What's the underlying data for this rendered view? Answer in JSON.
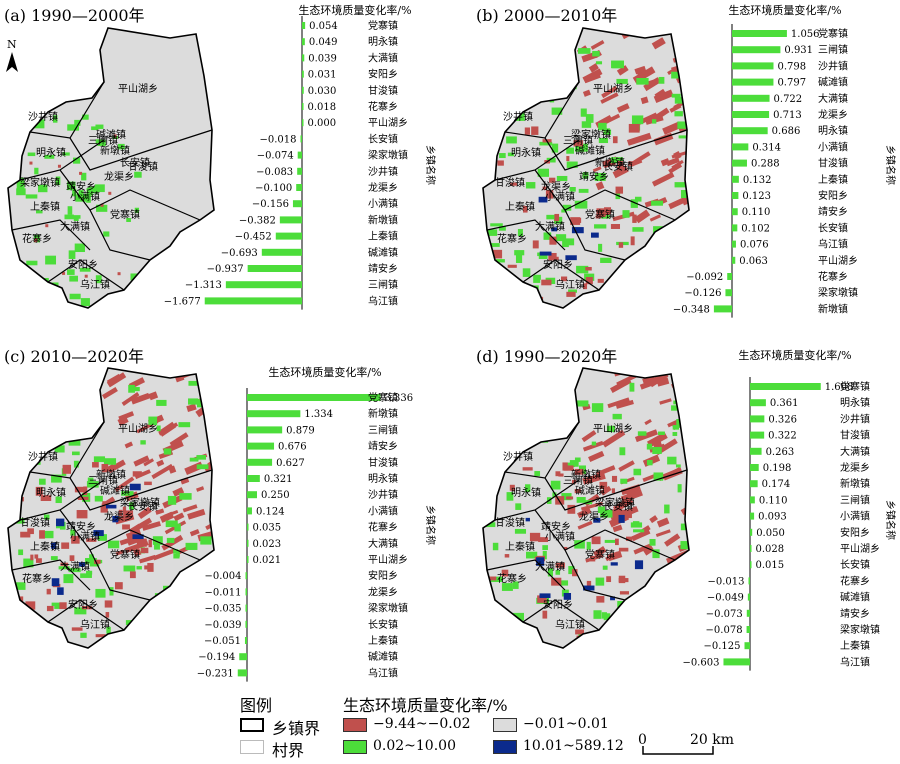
{
  "panels": [
    {
      "title": "(a) 1990—2000年",
      "chart_title": "生态环境质量变化率/%",
      "axis_label": "乡镇名称",
      "chart_data": {
        "type": "bar",
        "orientation": "horizontal",
        "categories": [
          "党寨镇",
          "明永镇",
          "大满镇",
          "安阳乡",
          "甘浚镇",
          "花寨乡",
          "平山湖乡",
          "长安镇",
          "梁家墩镇",
          "沙井镇",
          "龙渠乡",
          "小满镇",
          "新墩镇",
          "上秦镇",
          "碱滩镇",
          "靖安乡",
          "三闸镇",
          "乌江镇"
        ],
        "values": [
          0.054,
          0.049,
          0.039,
          0.031,
          0.03,
          0.018,
          0.0,
          -0.018,
          -0.074,
          -0.083,
          -0.1,
          -0.156,
          -0.382,
          -0.452,
          -0.693,
          -0.937,
          -1.313,
          -1.677
        ],
        "labels": [
          "0.054",
          "0.049",
          "0.039",
          "0.031",
          "0.030",
          "0.018",
          "0.000",
          "−0.018",
          "−0.074",
          "−0.083",
          "−0.100",
          "−0.156",
          "−0.382",
          "−0.452",
          "−0.693",
          "−0.937",
          "−1.313",
          "−1.677"
        ]
      },
      "map_labels": [
        "平山湖乡",
        "沙井镇",
        "三闸镇",
        "明永镇",
        "梁家墩镇",
        "新墩镇",
        "长安镇",
        "碱滩镇",
        "甘浚镇",
        "上秦镇",
        "靖安乡",
        "龙渠乡",
        "小满镇",
        "党寨镇",
        "大满镇",
        "花寨乡",
        "安阳乡",
        "乌江镇"
      ]
    },
    {
      "title": "(b) 2000—2010年",
      "chart_title": "生态环境质量变化率/%",
      "axis_label": "乡镇名称",
      "chart_data": {
        "type": "bar",
        "orientation": "horizontal",
        "categories": [
          "党寨镇",
          "三闸镇",
          "沙井镇",
          "碱滩镇",
          "大满镇",
          "龙渠乡",
          "明永镇",
          "小满镇",
          "甘浚镇",
          "上秦镇",
          "安阳乡",
          "靖安乡",
          "长安镇",
          "乌江镇",
          "平山湖乡",
          "花寨乡",
          "梁家墩镇",
          "新墩镇"
        ],
        "values": [
          1.056,
          0.931,
          0.798,
          0.797,
          0.722,
          0.713,
          0.686,
          0.314,
          0.288,
          0.132,
          0.123,
          0.11,
          0.102,
          0.076,
          0.063,
          -0.092,
          -0.126,
          -0.348
        ],
        "labels": [
          "1.056",
          "0.931",
          "0.798",
          "0.797",
          "0.722",
          "0.713",
          "0.686",
          "0.314",
          "0.288",
          "0.132",
          "0.123",
          "0.110",
          "0.102",
          "0.076",
          "0.063",
          "−0.092",
          "−0.126",
          "−0.348"
        ]
      },
      "map_labels": [
        "平山湖乡",
        "沙井镇",
        "三闸镇",
        "明永镇",
        "甘浚镇",
        "碱滩镇",
        "新墩镇",
        "梁家墩镇",
        "长安镇",
        "上秦镇",
        "龙渠乡",
        "靖安乡",
        "小满镇",
        "党寨镇",
        "大满镇",
        "花寨乡",
        "安阳乡",
        "乌江镇"
      ]
    },
    {
      "title": "(c) 2010—2020年",
      "chart_title": "生态环境质量变化率/%",
      "axis_label": "乡镇名称",
      "chart_data": {
        "type": "bar",
        "orientation": "horizontal",
        "categories": [
          "党寨镇",
          "新墩镇",
          "三闸镇",
          "靖安乡",
          "甘浚镇",
          "明永镇",
          "沙井镇",
          "小满镇",
          "花寨乡",
          "大满镇",
          "平山湖乡",
          "安阳乡",
          "龙渠乡",
          "梁家墩镇",
          "长安镇",
          "上秦镇",
          "碱滩镇",
          "乌江镇"
        ],
        "values": [
          3.336,
          1.334,
          0.879,
          0.676,
          0.627,
          0.321,
          0.25,
          0.124,
          0.035,
          0.023,
          0.021,
          -0.004,
          -0.011,
          -0.035,
          -0.039,
          -0.051,
          -0.194,
          -0.231
        ],
        "labels": [
          "3.336",
          "1.334",
          "0.879",
          "0.676",
          "0.627",
          "0.321",
          "0.250",
          "0.124",
          "0.035",
          "0.023",
          "0.021",
          "−0.004",
          "−0.011",
          "−0.035",
          "−0.039",
          "−0.051",
          "−0.194",
          "−0.231"
        ]
      },
      "map_labels": [
        "平山湖乡",
        "沙井镇",
        "三闸镇",
        "明永镇",
        "甘浚镇",
        "碱滩镇",
        "梁家墩镇",
        "新墩镇",
        "长安镇",
        "上秦镇",
        "靖安乡",
        "龙渠乡",
        "小满镇",
        "党寨镇",
        "大满镇",
        "花寨乡",
        "安阳乡",
        "乌江镇"
      ]
    },
    {
      "title": "(d) 1990—2020年",
      "chart_title": "生态环境质量变化率/%",
      "axis_label": "乡镇名称",
      "chart_data": {
        "type": "bar",
        "orientation": "horizontal",
        "categories": [
          "党寨镇",
          "明永镇",
          "沙井镇",
          "甘浚镇",
          "大满镇",
          "龙渠乡",
          "新墩镇",
          "三闸镇",
          "小满镇",
          "安阳乡",
          "平山湖乡",
          "长安镇",
          "花寨乡",
          "碱滩镇",
          "靖安乡",
          "梁家墩镇",
          "上秦镇",
          "乌江镇"
        ],
        "values": [
          1.608,
          0.361,
          0.326,
          0.322,
          0.263,
          0.198,
          0.174,
          0.11,
          0.093,
          0.05,
          0.028,
          0.015,
          -0.013,
          -0.049,
          -0.073,
          -0.078,
          -0.125,
          -0.603
        ],
        "labels": [
          "1.608",
          "0.361",
          "0.326",
          "0.322",
          "0.263",
          "0.198",
          "0.174",
          "0.110",
          "0.093",
          "0.050",
          "0.028",
          "0.015",
          "−0.013",
          "−0.049",
          "−0.073",
          "−0.078",
          "−0.125",
          "−0.603"
        ]
      },
      "map_labels": [
        "平山湖乡",
        "沙井镇",
        "三闸镇",
        "明永镇",
        "甘浚镇",
        "碱滩镇",
        "梁家墩镇",
        "新墩镇",
        "长安镇",
        "上秦镇",
        "靖安乡",
        "龙渠乡",
        "小满镇",
        "党寨镇",
        "大满镇",
        "花寨乡",
        "安阳乡",
        "乌江镇"
      ]
    }
  ],
  "north": "N",
  "legend": {
    "heading": "图例",
    "boundary_town": "乡镇界",
    "boundary_village": "村界",
    "class_title": "生态环境质量变化率/%",
    "classes": [
      {
        "label": "−9.44~−0.02",
        "color": "#c0504d"
      },
      {
        "label": "−0.01~0.01",
        "color": "#dcdcdc"
      },
      {
        "label": "0.02~10.00",
        "color": "#4cdd3a"
      },
      {
        "label": "10.01~589.12",
        "color": "#0b2a8c"
      }
    ]
  },
  "scale": {
    "zero": "0",
    "label": "20 km"
  },
  "colors": {
    "bar": "#4cdd3a",
    "red": "#c0504d",
    "gray": "#dcdcdc",
    "green": "#4cdd3a",
    "blue": "#0b2a8c"
  }
}
